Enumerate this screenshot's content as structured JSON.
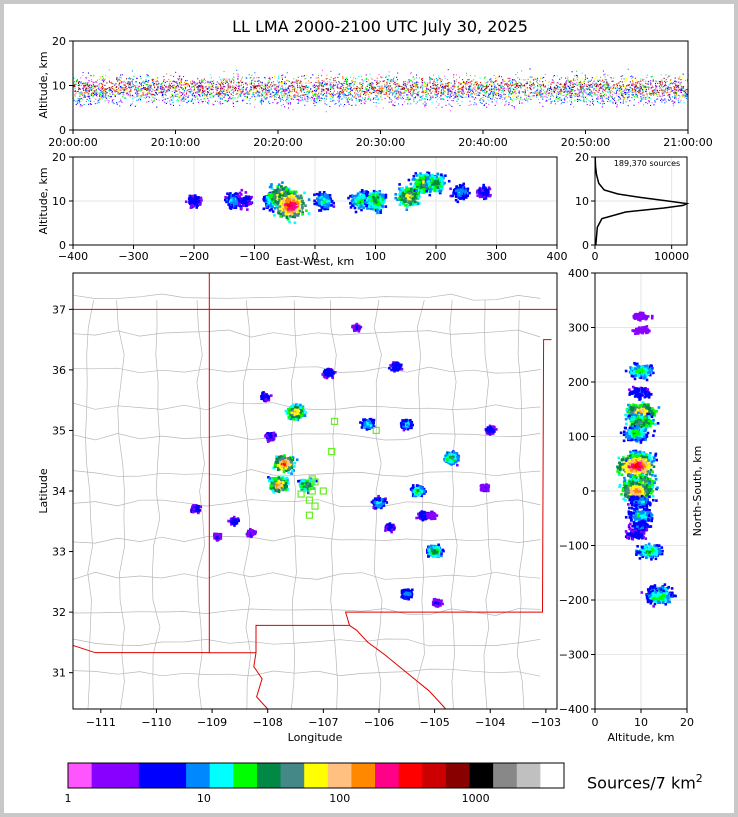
{
  "figure": {
    "title": "LL LMA 2000-2100 UTC July 30, 2025"
  },
  "chart_data": [
    {
      "id": "time_altitude",
      "type": "scatter",
      "xlabel": "",
      "ylabel": "Altitude, km",
      "xlim": [
        "20:00:00",
        "21:00:00"
      ],
      "ylim": [
        0,
        20
      ],
      "xticks": [
        "20:00:00",
        "20:10:00",
        "20:20:00",
        "20:30:00",
        "20:40:00",
        "20:50:00",
        "21:00:00"
      ],
      "yticks": [
        0,
        10,
        20
      ],
      "description_values": {
        "core_altitude_km": [
          8,
          12
        ],
        "peak_density_altitude_km": 9
      }
    },
    {
      "id": "eastwest_altitude",
      "type": "heatmap",
      "xlabel": "East-West, km",
      "ylabel": "Altitude, km",
      "xlim": [
        -400,
        400
      ],
      "ylim": [
        0,
        20
      ],
      "xticks": [
        -400,
        -300,
        -200,
        -100,
        0,
        100,
        200,
        300,
        400
      ],
      "yticks": [
        0,
        10,
        20
      ],
      "cells": [
        {
          "x": -200,
          "z": 10,
          "level": 3
        },
        {
          "x": -135,
          "z": 10,
          "level": 5
        },
        {
          "x": -115,
          "z": 10,
          "level": 3
        },
        {
          "x": -70,
          "z": 10,
          "level": 6
        },
        {
          "x": -55,
          "z": 11,
          "level": 11
        },
        {
          "x": -40,
          "z": 9,
          "level": 14
        },
        {
          "x": 15,
          "z": 10,
          "level": 6
        },
        {
          "x": 75,
          "z": 10,
          "level": 7
        },
        {
          "x": 100,
          "z": 10,
          "level": 8
        },
        {
          "x": 155,
          "z": 11,
          "level": 10
        },
        {
          "x": 180,
          "z": 14,
          "level": 9
        },
        {
          "x": 200,
          "z": 14,
          "level": 8
        },
        {
          "x": 240,
          "z": 12,
          "level": 5
        },
        {
          "x": 280,
          "z": 12,
          "level": 3
        }
      ]
    },
    {
      "id": "altitude_histogram",
      "type": "line",
      "annotation": "189,370 sources",
      "xlim": [
        0,
        12000
      ],
      "ylim": [
        0,
        20
      ],
      "xticks": [
        0,
        10000
      ],
      "yticks": [
        0,
        10,
        20
      ],
      "points": [
        {
          "count": 100,
          "alt": 0
        },
        {
          "count": 300,
          "alt": 4
        },
        {
          "count": 900,
          "alt": 6
        },
        {
          "count": 4000,
          "alt": 7.5
        },
        {
          "count": 9000,
          "alt": 8.4
        },
        {
          "count": 11500,
          "alt": 9
        },
        {
          "count": 12000,
          "alt": 9.4
        },
        {
          "count": 9500,
          "alt": 10
        },
        {
          "count": 6000,
          "alt": 10.8
        },
        {
          "count": 3000,
          "alt": 11.6
        },
        {
          "count": 1200,
          "alt": 12.5
        },
        {
          "count": 500,
          "alt": 14
        },
        {
          "count": 200,
          "alt": 16
        },
        {
          "count": 60,
          "alt": 18
        },
        {
          "count": 20,
          "alt": 20
        }
      ]
    },
    {
      "id": "plan_view",
      "type": "heatmap",
      "xlabel": "Longitude",
      "ylabel": "Latitude",
      "xlim": [
        -111.5,
        -102.8
      ],
      "ylim": [
        30.4,
        37.6
      ],
      "xticks": [
        -111,
        -110,
        -109,
        -108,
        -107,
        -106,
        -105,
        -104,
        -103
      ],
      "yticks": [
        31,
        32,
        33,
        34,
        35,
        36,
        37
      ],
      "cells": [
        {
          "lon": -107.7,
          "lat": 34.45,
          "level": 13
        },
        {
          "lon": -107.8,
          "lat": 34.1,
          "level": 12
        },
        {
          "lon": -107.5,
          "lat": 35.3,
          "level": 11
        },
        {
          "lon": -107.3,
          "lat": 34.1,
          "level": 9
        },
        {
          "lon": -104.7,
          "lat": 34.55,
          "level": 8
        },
        {
          "lon": -105.0,
          "lat": 33.0,
          "level": 8
        },
        {
          "lon": -106.2,
          "lat": 35.1,
          "level": 6
        },
        {
          "lon": -105.3,
          "lat": 34.0,
          "level": 7
        },
        {
          "lon": -106.0,
          "lat": 33.8,
          "level": 6
        },
        {
          "lon": -105.5,
          "lat": 35.1,
          "level": 5
        },
        {
          "lon": -105.5,
          "lat": 32.3,
          "level": 5
        },
        {
          "lon": -105.2,
          "lat": 33.6,
          "level": 4
        },
        {
          "lon": -105.7,
          "lat": 36.05,
          "level": 4
        },
        {
          "lon": -106.9,
          "lat": 35.95,
          "level": 4
        },
        {
          "lon": -109.3,
          "lat": 33.7,
          "level": 3
        },
        {
          "lon": -108.6,
          "lat": 33.5,
          "level": 3
        },
        {
          "lon": -107.95,
          "lat": 34.9,
          "level": 3
        },
        {
          "lon": -108.05,
          "lat": 35.55,
          "level": 3
        },
        {
          "lon": -104.0,
          "lat": 35.0,
          "level": 3
        },
        {
          "lon": -105.8,
          "lat": 33.4,
          "level": 3
        },
        {
          "lon": -108.3,
          "lat": 33.3,
          "level": 2
        },
        {
          "lon": -108.9,
          "lat": 33.25,
          "level": 2
        },
        {
          "lon": -106.4,
          "lat": 36.7,
          "level": 2
        },
        {
          "lon": -105.05,
          "lat": 33.6,
          "level": 2
        },
        {
          "lon": -104.95,
          "lat": 32.15,
          "level": 2
        },
        {
          "lon": -104.1,
          "lat": 34.05,
          "level": 2
        }
      ],
      "stations": [
        {
          "lon": -107.15,
          "lat": 34.15
        },
        {
          "lon": -107.2,
          "lat": 34.0
        },
        {
          "lon": -107.0,
          "lat": 34.0
        },
        {
          "lon": -107.4,
          "lat": 33.95
        },
        {
          "lon": -107.25,
          "lat": 33.85
        },
        {
          "lon": -107.15,
          "lat": 33.75
        },
        {
          "lon": -107.25,
          "lat": 33.6
        },
        {
          "lon": -106.8,
          "lat": 35.15
        },
        {
          "lon": -106.05,
          "lat": 35.0
        },
        {
          "lon": -106.85,
          "lat": 34.65
        },
        {
          "lon": -107.2,
          "lat": 34.2
        }
      ]
    },
    {
      "id": "altitude_northsouth",
      "type": "heatmap",
      "xlabel": "Altitude, km",
      "ylabel": "North-South, km",
      "xlim": [
        0,
        20
      ],
      "ylim": [
        -400,
        400
      ],
      "xticks": [
        0,
        10,
        20
      ],
      "yticks": [
        -400,
        -300,
        -200,
        -100,
        0,
        100,
        200,
        300,
        400
      ],
      "cells": [
        {
          "z": 10,
          "y": 320,
          "level": 1
        },
        {
          "z": 10,
          "y": 295,
          "level": 1
        },
        {
          "z": 10,
          "y": 220,
          "level": 7
        },
        {
          "z": 10,
          "y": 180,
          "level": 4
        },
        {
          "z": 10,
          "y": 145,
          "level": 11
        },
        {
          "z": 10,
          "y": 125,
          "level": 9
        },
        {
          "z": 9,
          "y": 105,
          "level": 7
        },
        {
          "z": 10,
          "y": 60,
          "level": 8
        },
        {
          "z": 9,
          "y": 45,
          "level": 14
        },
        {
          "z": 10,
          "y": 15,
          "level": 10
        },
        {
          "z": 9,
          "y": 0,
          "level": 12
        },
        {
          "z": 10,
          "y": -20,
          "level": 5
        },
        {
          "z": 10,
          "y": -45,
          "level": 6
        },
        {
          "z": 10,
          "y": -65,
          "level": 4
        },
        {
          "z": 9,
          "y": -80,
          "level": 3
        },
        {
          "z": 12,
          "y": -110,
          "level": 7
        },
        {
          "z": 14,
          "y": -185,
          "level": 6
        },
        {
          "z": 14,
          "y": -195,
          "level": 7
        }
      ]
    }
  ],
  "colorbar": {
    "label": "Sources/7 km",
    "label_superscript": "2",
    "ticks": [
      "1",
      "10",
      "100",
      "1000"
    ],
    "colors": [
      "#ff55ff",
      "#8800ff",
      "#8800ff",
      "#0000ff",
      "#0000ff",
      "#0088ff",
      "#00ffff",
      "#00ff00",
      "#008844",
      "#448888",
      "#ffff00",
      "#ffc080",
      "#ff8800",
      "#ff0088",
      "#ff0000",
      "#cc0000",
      "#880000",
      "#000000",
      "#888888",
      "#c0c0c0",
      "#ffffff"
    ]
  }
}
